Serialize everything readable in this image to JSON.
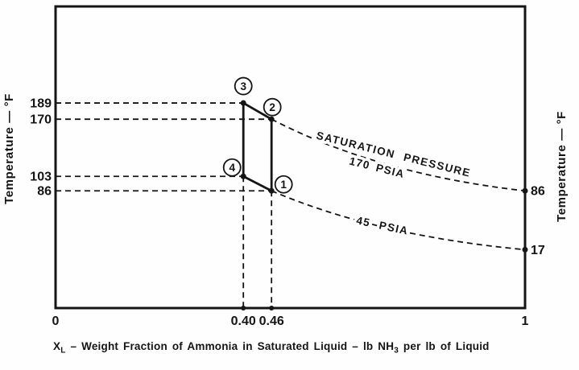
{
  "figure": {
    "left_axis": {
      "title": "Temperature — °F"
    },
    "right_axis": {
      "title": "Temperature — °F"
    },
    "x_axis": {
      "caption": {
        "prefix": "X",
        "prefix_sub": "L",
        "middle": " – Weight Fraction of Ammonia in Saturated Liquid – lb NH",
        "middle_sub": "3",
        "suffix": " per lb of Liquid"
      }
    }
  },
  "chart_data": {
    "type": "line",
    "title": "",
    "xlabel": "X_L – Weight Fraction of Ammonia in Saturated Liquid – lb NH3 per lb of Liquid",
    "ylabel_left": "Temperature — °F",
    "ylabel_right": "Temperature — °F",
    "xlim": [
      0,
      1
    ],
    "grid": false,
    "x_ticks": [
      {
        "label": "0",
        "x": 0
      },
      {
        "label": "0.40",
        "x": 0.4
      },
      {
        "label": "0.46",
        "x": 0.46
      },
      {
        "label": "1",
        "x": 1
      }
    ],
    "left_ticks": [
      {
        "label": "189",
        "T": 189
      },
      {
        "label": "170",
        "T": 170
      },
      {
        "label": "103",
        "T": 103
      },
      {
        "label": "86",
        "T": 86
      }
    ],
    "right_ticks": [
      {
        "label": "86",
        "T": 86
      },
      {
        "label": "17",
        "T": 17
      }
    ],
    "cycle_points": [
      {
        "label": "1",
        "x": 0.46,
        "T": 86
      },
      {
        "label": "2",
        "x": 0.46,
        "T": 170
      },
      {
        "label": "3",
        "x": 0.4,
        "T": 189
      },
      {
        "label": "4",
        "x": 0.4,
        "T": 103
      }
    ],
    "cycle_path_order": [
      "3",
      "2",
      "1",
      "4",
      "3"
    ],
    "curves": [
      {
        "name": "saturation-pressure-170-psia",
        "label_lines": [
          "SATURATION PRESSURE",
          "170 PSIA"
        ],
        "style": "dashed",
        "points": [
          {
            "x": 0.46,
            "T": 170
          },
          {
            "x": 1,
            "T": 86
          }
        ]
      },
      {
        "name": "saturation-pressure-45-psia",
        "label_lines": [
          "45 PSIA"
        ],
        "style": "dashed",
        "points": [
          {
            "x": 0.46,
            "T": 86
          },
          {
            "x": 1,
            "T": 17
          }
        ]
      }
    ],
    "colors": {
      "ink": "#151515",
      "paper": "#fefefe"
    }
  }
}
